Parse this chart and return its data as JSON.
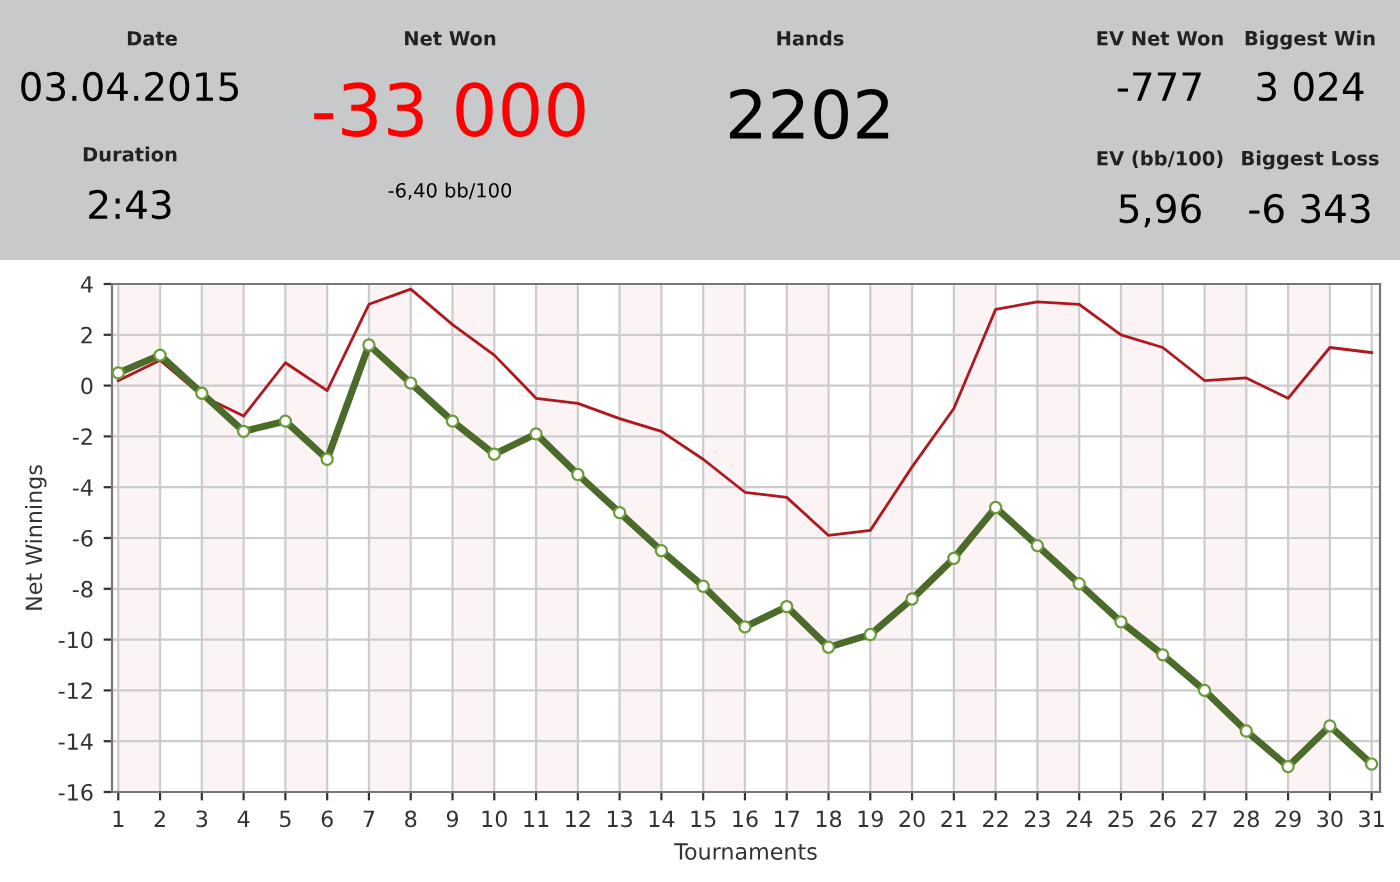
{
  "chart_data": [
    {
      "type": "other",
      "annotations": [
        "Date",
        "03.04.2015",
        "Duration",
        "2:43",
        "Net Won",
        "-33 000",
        "-6,40 bb/100",
        "Hands",
        "2202",
        "EV Net Won",
        "Biggest Win",
        "-777",
        "3 024",
        "EV (bb/100)",
        "Biggest Loss",
        "5,96",
        "-6 343"
      ]
    },
    {
      "type": "line",
      "xlabel": "Tournaments",
      "ylabel": "Net Winnings",
      "x": [
        1,
        2,
        3,
        4,
        5,
        6,
        7,
        8,
        9,
        10,
        11,
        12,
        13,
        14,
        15,
        16,
        17,
        18,
        19,
        20,
        21,
        22,
        23,
        24,
        25,
        26,
        27,
        28,
        29,
        30,
        31
      ],
      "series": [
        {
          "color": "#b01820",
          "marker": "none",
          "values": [
            0.2,
            1.0,
            -0.4,
            -1.2,
            0.9,
            -0.2,
            3.2,
            3.8,
            2.4,
            1.2,
            -0.5,
            -0.7,
            -1.3,
            -1.8,
            -2.9,
            -4.2,
            -4.4,
            -5.9,
            -5.7,
            -3.2,
            -0.9,
            3.0,
            3.3,
            3.2,
            2.0,
            1.5,
            0.2,
            0.3,
            -0.5,
            1.5,
            1.3
          ]
        },
        {
          "color": "#4a6b2a",
          "marker": "circle",
          "values": [
            0.5,
            1.2,
            -0.3,
            -1.8,
            -1.4,
            -2.9,
            1.6,
            0.1,
            -1.4,
            -2.7,
            -1.9,
            -3.5,
            -5.0,
            -6.5,
            -7.9,
            -9.5,
            -8.7,
            -10.3,
            -9.8,
            -8.4,
            -6.8,
            -4.8,
            -6.3,
            -7.8,
            -9.3,
            -10.6,
            -12.0,
            -13.6,
            -15.0,
            -13.4,
            -14.9
          ]
        }
      ],
      "xlim": [
        0.85,
        31.2
      ],
      "xticks": [
        1,
        2,
        3,
        4,
        5,
        6,
        7,
        8,
        9,
        10,
        11,
        12,
        13,
        14,
        15,
        16,
        17,
        18,
        19,
        20,
        21,
        22,
        23,
        24,
        25,
        26,
        27,
        28,
        29,
        30,
        31
      ],
      "ylim": [
        -16,
        4
      ],
      "yticks": [
        -16,
        -14,
        -12,
        -10,
        -8,
        -6,
        -4,
        -2,
        0,
        2,
        4
      ],
      "bands": [
        {
          "axis": "x",
          "from": 1,
          "to": 2,
          "color": "#fcf4f4"
        },
        {
          "axis": "x",
          "from": 3,
          "to": 4,
          "color": "#fcf4f4"
        },
        {
          "axis": "x",
          "from": 5,
          "to": 6,
          "color": "#fcf4f4"
        },
        {
          "axis": "x",
          "from": 7,
          "to": 8,
          "color": "#fcf4f4"
        },
        {
          "axis": "x",
          "from": 9,
          "to": 10,
          "color": "#fcf4f4"
        },
        {
          "axis": "x",
          "from": 11,
          "to": 12,
          "color": "#fcf4f4"
        },
        {
          "axis": "x",
          "from": 13,
          "to": 14,
          "color": "#fcf4f4"
        },
        {
          "axis": "x",
          "from": 15,
          "to": 16,
          "color": "#fcf4f4"
        },
        {
          "axis": "x",
          "from": 17,
          "to": 18,
          "color": "#fcf4f4"
        },
        {
          "axis": "x",
          "from": 19,
          "to": 20,
          "color": "#fcf4f4"
        },
        {
          "axis": "x",
          "from": 21,
          "to": 22,
          "color": "#fcf4f4"
        },
        {
          "axis": "x",
          "from": 23,
          "to": 24,
          "color": "#fcf4f4"
        },
        {
          "axis": "x",
          "from": 25,
          "to": 26,
          "color": "#fcf4f4"
        },
        {
          "axis": "x",
          "from": 27,
          "to": 28,
          "color": "#fcf4f4"
        },
        {
          "axis": "x",
          "from": 29,
          "to": 30,
          "color": "#fcf4f4"
        }
      ],
      "grid": true
    }
  ]
}
